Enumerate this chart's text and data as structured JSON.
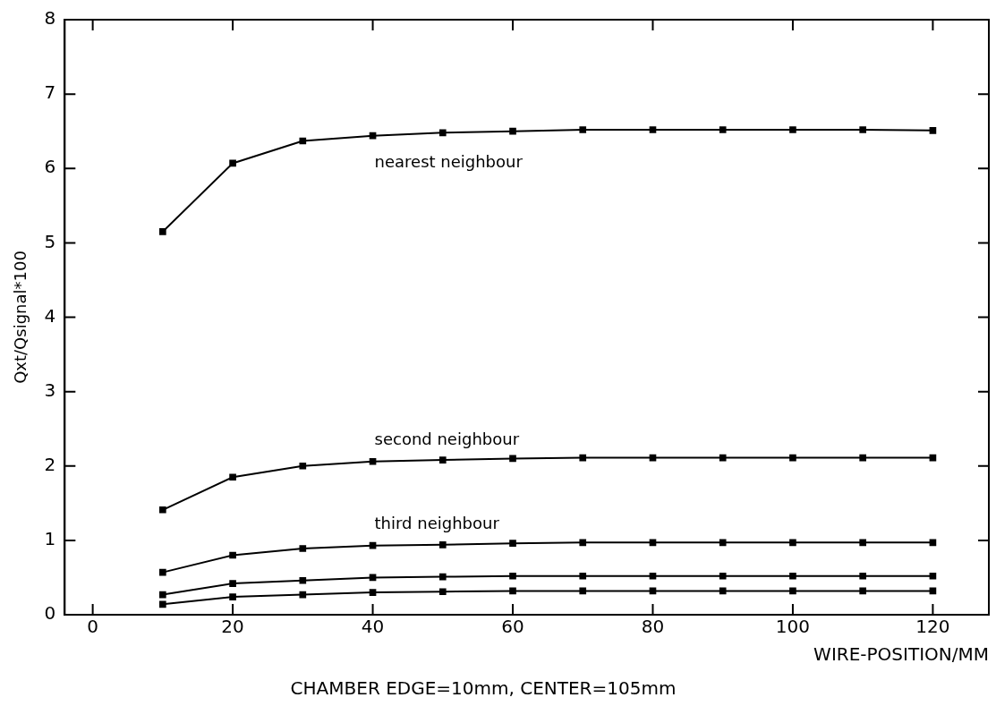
{
  "chart_data": {
    "type": "line",
    "ylabel": "Qxt/Qsignal*100",
    "xlabel": "WIRE-POSITION/MM",
    "x": [
      10,
      20,
      30,
      40,
      50,
      60,
      70,
      80,
      90,
      100,
      110,
      120
    ],
    "series": [
      {
        "name": "nearest neighbour",
        "color": "#000000",
        "values": [
          5.15,
          6.07,
          6.37,
          6.44,
          6.48,
          6.5,
          6.52,
          6.52,
          6.52,
          6.52,
          6.52,
          6.51
        ]
      },
      {
        "name": "second neighbour",
        "color": "#000000",
        "values": [
          1.41,
          1.85,
          2.0,
          2.06,
          2.08,
          2.1,
          2.11,
          2.11,
          2.11,
          2.11,
          2.11,
          2.11
        ]
      },
      {
        "name": "third neighbour",
        "color": "#000000",
        "values": [
          0.57,
          0.8,
          0.89,
          0.93,
          0.94,
          0.96,
          0.97,
          0.97,
          0.97,
          0.97,
          0.97,
          0.97
        ]
      },
      {
        "color": "#000000",
        "values": [
          0.27,
          0.42,
          0.46,
          0.5,
          0.51,
          0.52,
          0.52,
          0.52,
          0.52,
          0.52,
          0.52,
          0.52
        ]
      },
      {
        "color": "#000000",
        "values": [
          0.14,
          0.24,
          0.27,
          0.3,
          0.31,
          0.32,
          0.32,
          0.32,
          0.32,
          0.32,
          0.32,
          0.32
        ]
      }
    ],
    "xlim": [
      -4,
      128
    ],
    "xticks": [
      0,
      20,
      40,
      60,
      80,
      100,
      120
    ],
    "ylim": [
      0,
      8
    ],
    "yticks": [
      0,
      1,
      2,
      3,
      4,
      5,
      6,
      7,
      8
    ],
    "grid": false,
    "legend": false,
    "marker": "square",
    "line_style": "solid",
    "annotations": [
      "CHAMBER EDGE=10mm, CENTER=105mm"
    ]
  }
}
